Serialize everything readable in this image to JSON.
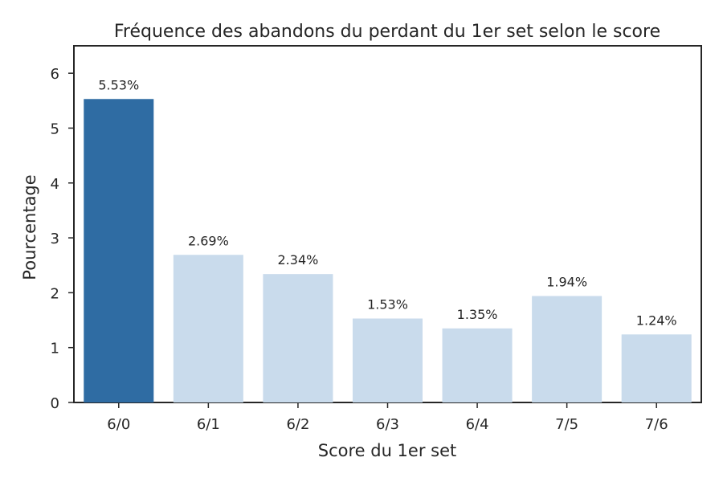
{
  "chart_data": {
    "type": "bar",
    "title": "Fréquence des abandons du perdant du 1er set selon le score",
    "xlabel": "Score du 1er set",
    "ylabel": "Pourcentage",
    "categories": [
      "6/0",
      "6/1",
      "6/2",
      "6/3",
      "6/4",
      "7/5",
      "7/6"
    ],
    "values": [
      5.53,
      2.69,
      2.34,
      1.53,
      1.35,
      1.94,
      1.24
    ],
    "value_labels": [
      "5.53%",
      "2.69%",
      "2.34%",
      "1.53%",
      "1.35%",
      "1.94%",
      "1.24%"
    ],
    "ylim": [
      0,
      6.5
    ],
    "yticks": [
      0,
      1,
      2,
      3,
      4,
      5,
      6
    ],
    "grid": false,
    "legend": "none",
    "colors": {
      "highlight": "#2f6ca3",
      "default": "#c9dbec",
      "axis": "#262626",
      "text": "#262626"
    },
    "highlight_index": 0
  }
}
